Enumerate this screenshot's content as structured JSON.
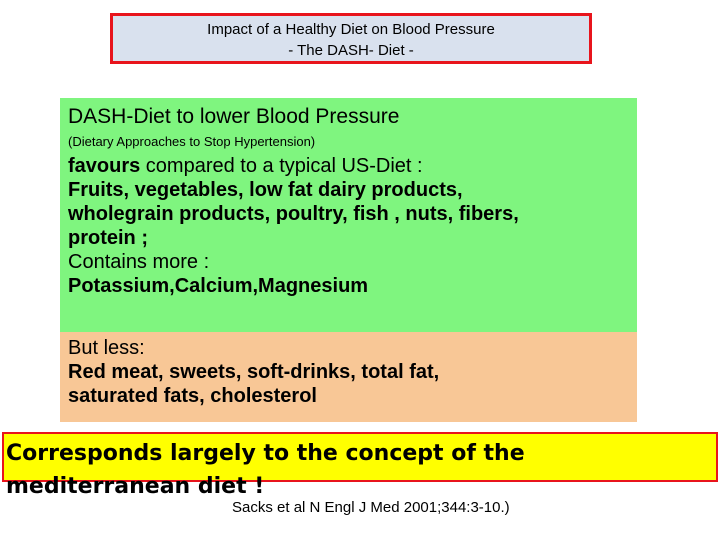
{
  "title": {
    "line1": "Impact of a Healthy Diet on Blood Pressure",
    "line2": "- The DASH- Diet -"
  },
  "green_box": {
    "heading": "DASH-Diet to lower Blood Pressure",
    "subheading": "(Dietary Approaches to Stop Hypertension)",
    "favours_bold": "favours",
    "favours_rest": " compared to a typical  US-Diet :",
    "foods_line1": "Fruits, vegetables, low fat dairy products,",
    "foods_line2": "wholegrain products, poultry, fish , nuts, fibers,",
    "foods_line3": "protein ;",
    "contains_label": "Contains more :",
    "minerals": "Potassium,Calcium,Magnesium"
  },
  "orange_box": {
    "but_less_label": "But less:",
    "less_line1": "Red meat, sweets, soft-drinks, total fat,",
    "less_line2": "saturated fats, cholesterol"
  },
  "conclusion": {
    "line1": "Corresponds largely  to the concept of the",
    "line2": "mediterranean diet !"
  },
  "citation": "Sacks et al N Engl J Med 2001;344:3-10.)",
  "colors": {
    "title_bg": "#d9e1ee",
    "title_border": "#e8141c",
    "green_bg": "#7ff57f",
    "orange_bg": "#f8c796",
    "yellow_bg": "#ffff00"
  }
}
